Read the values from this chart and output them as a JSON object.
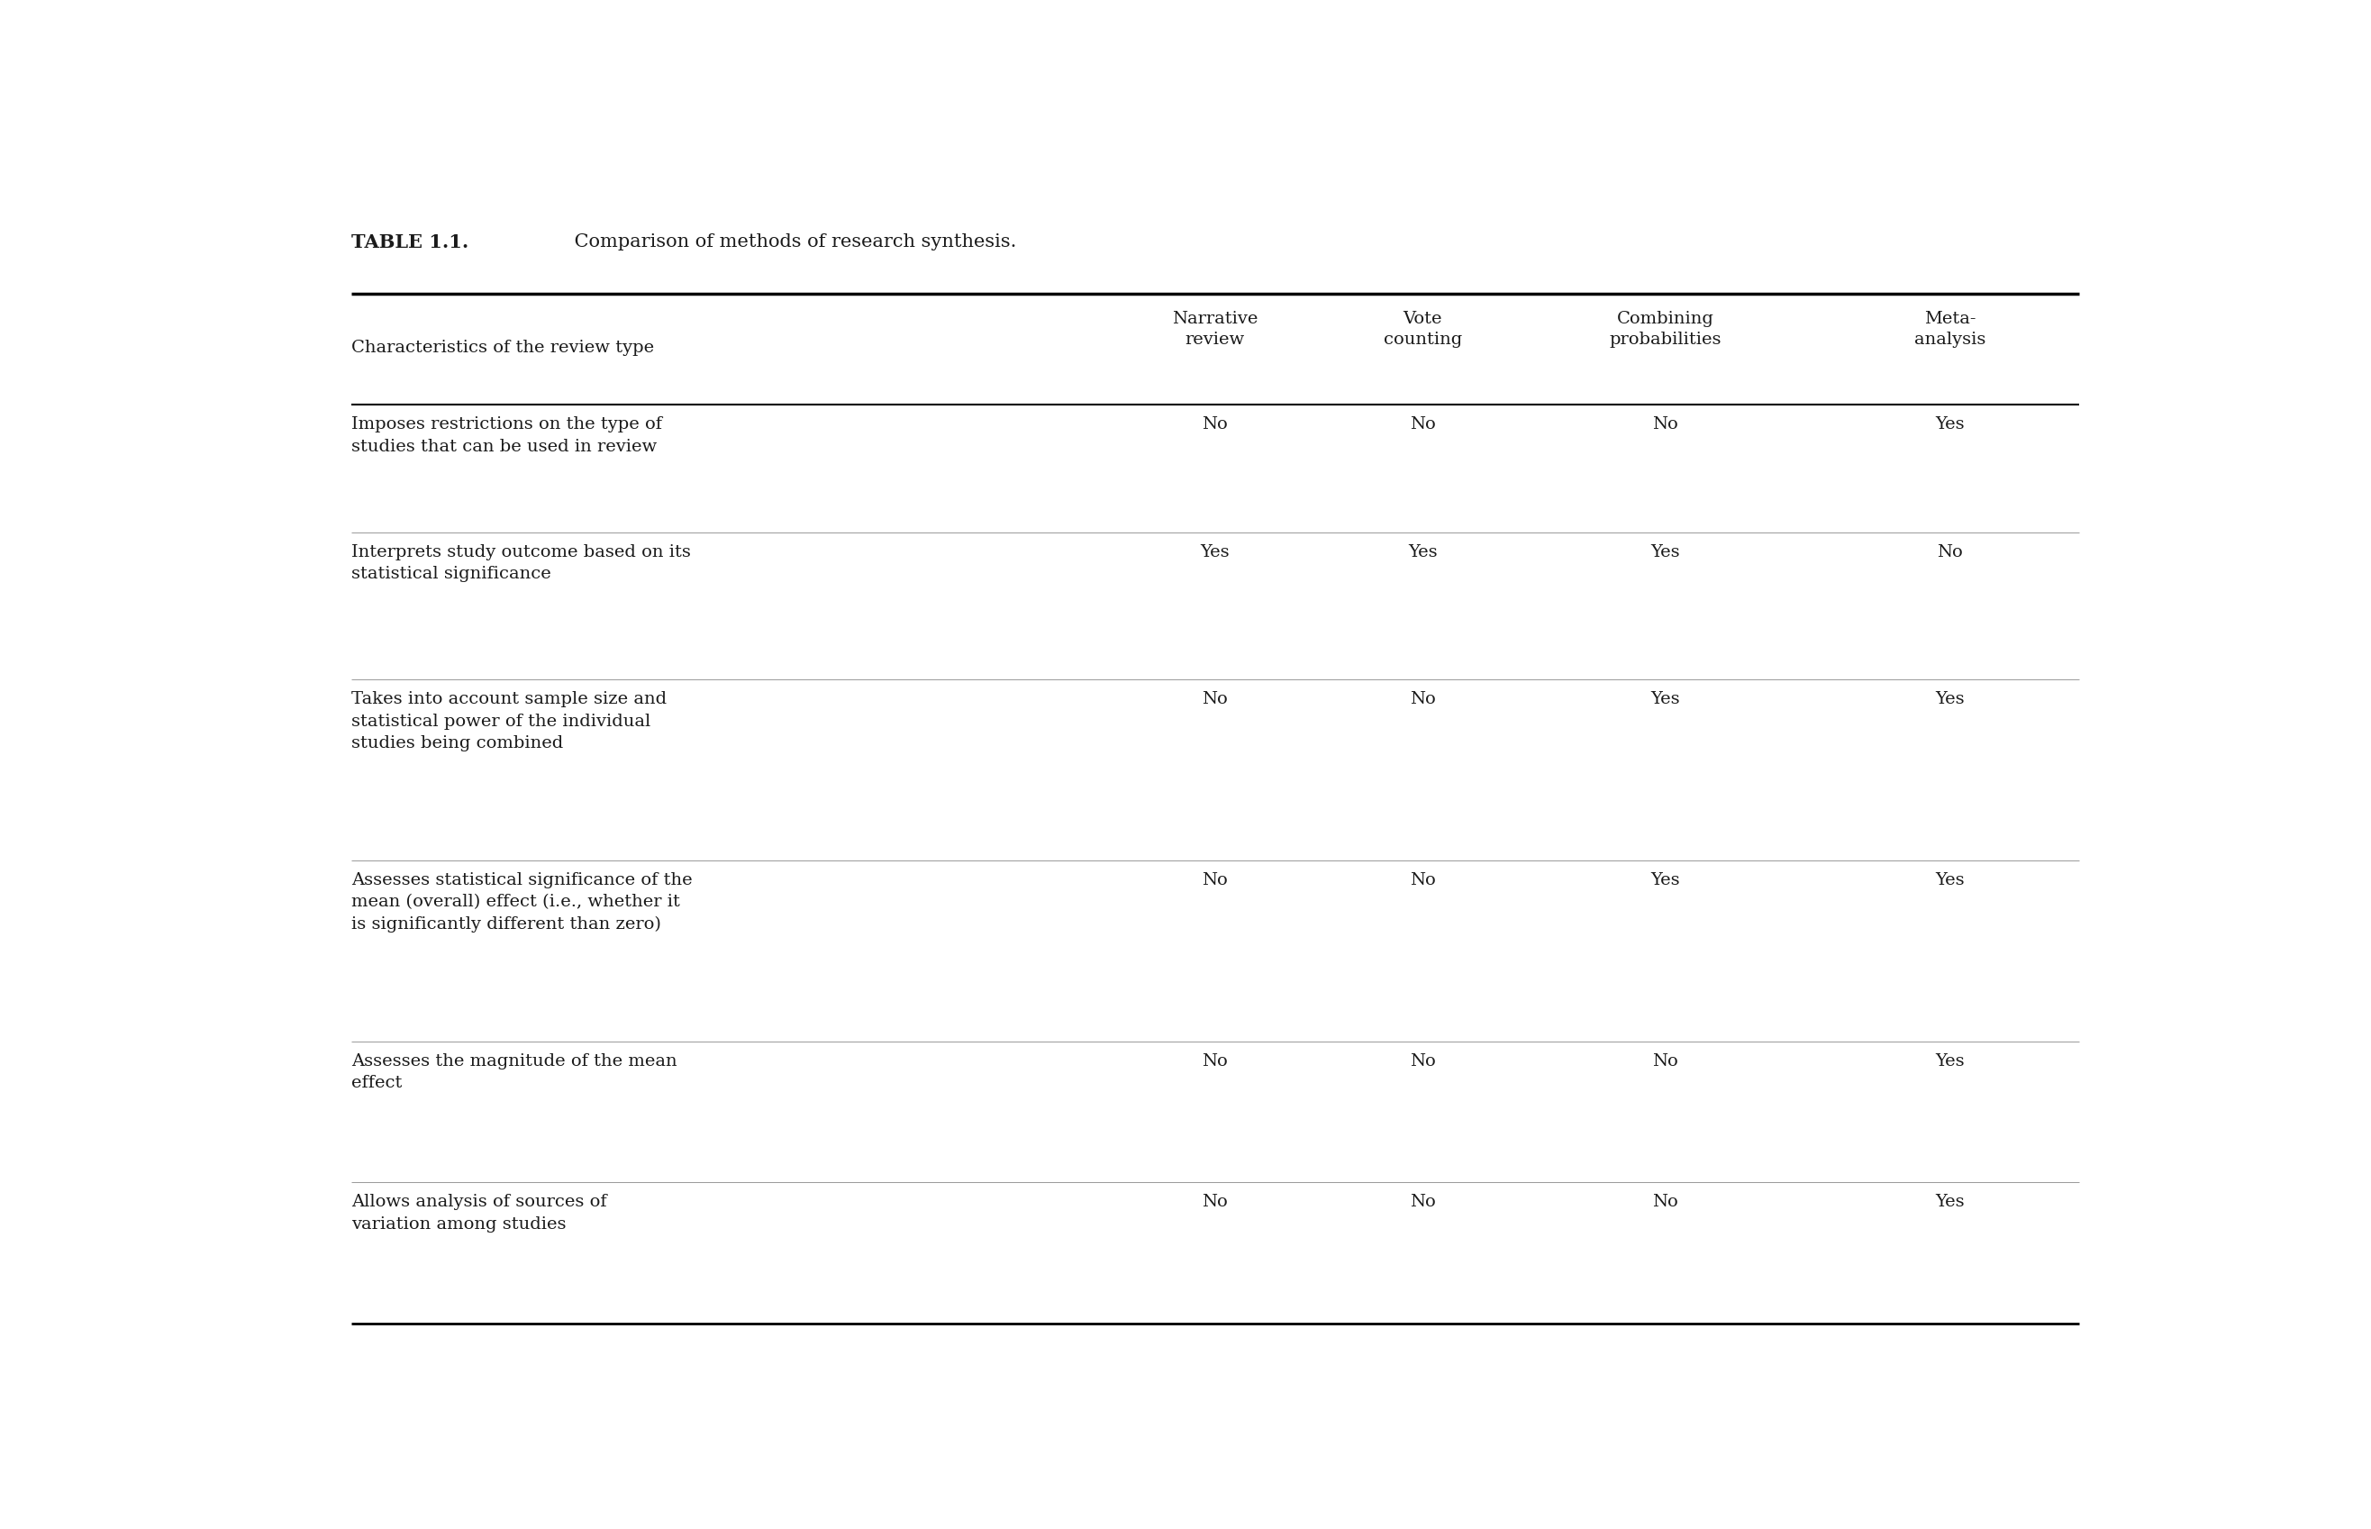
{
  "title_bold": "TABLE 1.1.",
  "title_rest": " Comparison of methods of research synthesis.",
  "background_color": "#ffffff",
  "text_color": "#1a1a1a",
  "col_headers": [
    "Characteristics of the review type",
    "Narrative\nreview",
    "Vote\ncounting",
    "Combining\nprobabilities",
    "Meta-\nanalysis"
  ],
  "rows": [
    {
      "characteristic": "Imposes restrictions on the type of\nstudies that can be used in review",
      "values": [
        "No",
        "No",
        "No",
        "Yes"
      ]
    },
    {
      "characteristic": "Interprets study outcome based on its\nstatistical significance",
      "values": [
        "Yes",
        "Yes",
        "Yes",
        "No"
      ]
    },
    {
      "characteristic": "Takes into account sample size and\nstatistical power of the individual\nstudies being combined",
      "values": [
        "No",
        "No",
        "Yes",
        "Yes"
      ]
    },
    {
      "characteristic": "Assesses statistical significance of the\nmean (overall) effect (i.e., whether it\nis significantly different than zero)",
      "values": [
        "No",
        "No",
        "Yes",
        "Yes"
      ]
    },
    {
      "characteristic": "Assesses the magnitude of the mean\neffect",
      "values": [
        "No",
        "No",
        "No",
        "Yes"
      ]
    },
    {
      "characteristic": "Allows analysis of sources of\nvariation among studies",
      "values": [
        "No",
        "No",
        "No",
        "Yes"
      ]
    }
  ],
  "header_fontsize": 14,
  "body_fontsize": 14,
  "title_fontsize": 15
}
